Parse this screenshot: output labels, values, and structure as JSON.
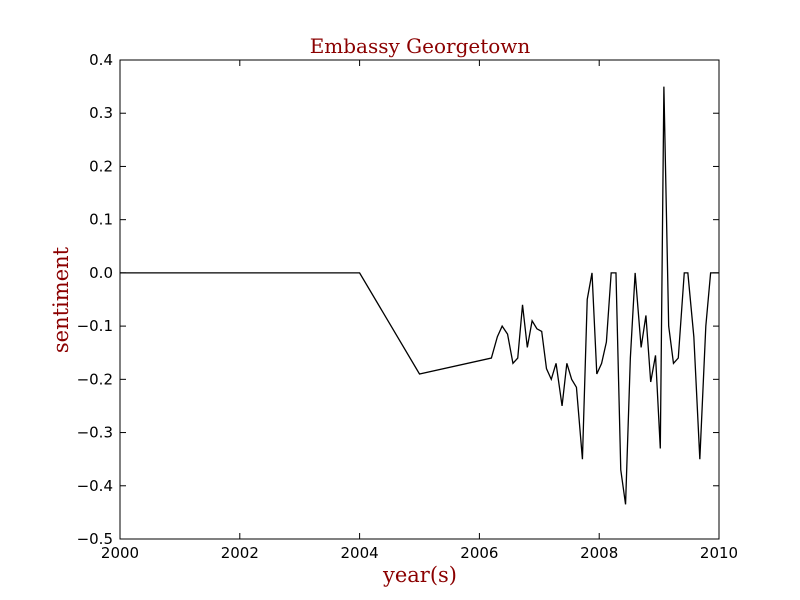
{
  "colors": {
    "background": "#ffffff",
    "line": "#000000",
    "title": "#8b0000",
    "axis_label": "#8b0000"
  },
  "chart_data": {
    "type": "line",
    "title": "Embassy Georgetown",
    "xlabel": "year(s)",
    "ylabel": "sentiment",
    "xlim": [
      2000,
      2010
    ],
    "ylim": [
      -0.5,
      0.4
    ],
    "xticks": [
      2000,
      2002,
      2004,
      2006,
      2008,
      2010
    ],
    "xtick_labels": [
      "2000",
      "2002",
      "2004",
      "2006",
      "2008",
      "2010"
    ],
    "yticks": [
      0.4,
      0.3,
      0.2,
      0.1,
      0.0,
      -0.1,
      -0.2,
      -0.3,
      -0.4,
      -0.5
    ],
    "ytick_labels": [
      "0.4",
      "0.3",
      "0.2",
      "0.1",
      "0.0",
      "−0.1",
      "−0.2",
      "−0.3",
      "−0.4",
      "−0.5"
    ],
    "grid": false,
    "series": [
      {
        "x": [
          2000.0,
          2004.0,
          2005.0,
          2006.2,
          2006.3,
          2006.38,
          2006.47,
          2006.56,
          2006.64,
          2006.72,
          2006.8,
          2006.88,
          2006.96,
          2007.04,
          2007.12,
          2007.2,
          2007.28,
          2007.38,
          2007.46,
          2007.54,
          2007.62,
          2007.72,
          2007.8,
          2007.88,
          2007.96,
          2008.04,
          2008.12,
          2008.2,
          2008.28,
          2008.36,
          2008.44,
          2008.52,
          2008.6,
          2008.7,
          2008.78,
          2008.86,
          2008.94,
          2009.02,
          2009.08,
          2009.16,
          2009.24,
          2009.32,
          2009.42,
          2009.48,
          2009.58,
          2009.68,
          2009.78,
          2009.86,
          2010.0
        ],
        "y": [
          0.0,
          0.0,
          -0.19,
          -0.16,
          -0.12,
          -0.1,
          -0.115,
          -0.17,
          -0.16,
          -0.06,
          -0.14,
          -0.09,
          -0.105,
          -0.11,
          -0.18,
          -0.2,
          -0.17,
          -0.25,
          -0.17,
          -0.2,
          -0.215,
          -0.35,
          -0.05,
          0.0,
          -0.19,
          -0.17,
          -0.13,
          0.0,
          0.0,
          -0.37,
          -0.435,
          -0.16,
          0.0,
          -0.14,
          -0.08,
          -0.205,
          -0.155,
          -0.33,
          0.35,
          -0.1,
          -0.17,
          -0.16,
          0.0,
          0.0,
          -0.12,
          -0.35,
          -0.1,
          0.0,
          0.0
        ]
      }
    ]
  }
}
